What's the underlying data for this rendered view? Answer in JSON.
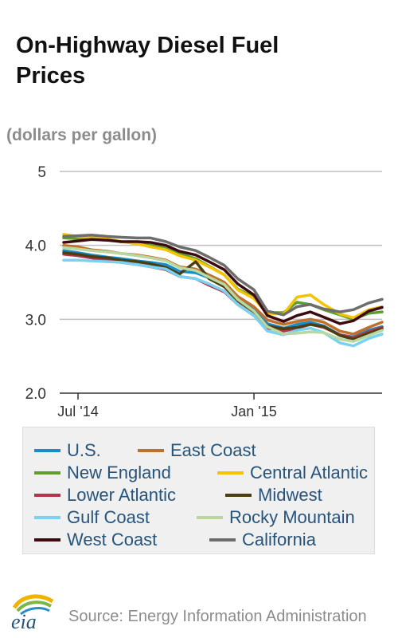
{
  "chart_data": {
    "type": "line",
    "title": "On-Highway Diesel Fuel Prices",
    "ylabel": "(dollars per gallon)",
    "ylim": [
      2.0,
      5.0
    ],
    "yticks": [
      "5",
      "4.0",
      "3.0",
      "2.0"
    ],
    "xticks": [
      "Jul '14",
      "Jan '15"
    ],
    "x": [
      "2014-06-16",
      "2014-07-01",
      "2014-07-15",
      "2014-08-01",
      "2014-08-15",
      "2014-09-01",
      "2014-09-15",
      "2014-10-01",
      "2014-10-15",
      "2014-11-01",
      "2014-11-15",
      "2014-12-01",
      "2014-12-15",
      "2015-01-01",
      "2015-01-15",
      "2015-02-01",
      "2015-02-15",
      "2015-03-01",
      "2015-03-15",
      "2015-04-01",
      "2015-04-15",
      "2015-05-01",
      "2015-05-15"
    ],
    "grid": true,
    "legend_position": "bottom",
    "series": [
      {
        "name": "U.S.",
        "color": "#1a8dc9",
        "values": [
          3.93,
          3.9,
          3.87,
          3.84,
          3.82,
          3.79,
          3.77,
          3.74,
          3.65,
          3.63,
          3.56,
          3.46,
          3.28,
          3.14,
          2.94,
          2.88,
          2.93,
          2.96,
          2.91,
          2.79,
          2.76,
          2.85,
          2.9
        ]
      },
      {
        "name": "East Coast",
        "color": "#c1702b",
        "values": [
          4.0,
          3.98,
          3.94,
          3.92,
          3.89,
          3.87,
          3.84,
          3.8,
          3.71,
          3.68,
          3.6,
          3.5,
          3.31,
          3.17,
          2.99,
          2.93,
          2.97,
          3.0,
          2.96,
          2.84,
          2.8,
          2.89,
          2.96
        ]
      },
      {
        "name": "New England",
        "color": "#5f9e2f",
        "values": [
          4.1,
          4.09,
          4.1,
          4.08,
          4.05,
          4.03,
          4.0,
          3.96,
          3.89,
          3.82,
          3.72,
          3.6,
          3.41,
          3.3,
          3.09,
          3.09,
          3.23,
          3.2,
          3.13,
          3.06,
          3.0,
          3.08,
          3.1
        ]
      },
      {
        "name": "Central Atlantic",
        "color": "#f5c400",
        "values": [
          4.15,
          4.12,
          4.11,
          4.09,
          4.05,
          4.02,
          3.98,
          3.94,
          3.86,
          3.8,
          3.71,
          3.6,
          3.4,
          3.28,
          3.08,
          3.07,
          3.3,
          3.33,
          3.2,
          3.07,
          3.02,
          3.13,
          3.17
        ]
      },
      {
        "name": "Lower Atlantic",
        "color": "#b5344d",
        "values": [
          3.88,
          3.86,
          3.83,
          3.8,
          3.77,
          3.74,
          3.71,
          3.67,
          3.58,
          3.55,
          3.46,
          3.37,
          3.2,
          3.05,
          2.88,
          2.84,
          2.88,
          2.93,
          2.89,
          2.79,
          2.75,
          2.83,
          2.89
        ]
      },
      {
        "name": "Midwest",
        "color": "#4a3e12",
        "values": [
          3.9,
          3.88,
          3.85,
          3.83,
          3.8,
          3.78,
          3.75,
          3.7,
          3.61,
          3.78,
          3.55,
          3.44,
          3.25,
          3.1,
          2.91,
          2.87,
          2.89,
          2.93,
          2.9,
          2.78,
          2.73,
          2.81,
          2.87
        ]
      },
      {
        "name": "Gulf Coast",
        "color": "#78d2f0",
        "values": [
          3.8,
          3.8,
          3.79,
          3.78,
          3.77,
          3.74,
          3.71,
          3.68,
          3.58,
          3.55,
          3.48,
          3.38,
          3.2,
          3.05,
          2.84,
          2.79,
          2.85,
          2.88,
          2.82,
          2.68,
          2.64,
          2.74,
          2.8
        ]
      },
      {
        "name": "Rocky Mountain",
        "color": "#b8d8a0",
        "values": [
          3.97,
          3.95,
          3.93,
          3.91,
          3.89,
          3.86,
          3.83,
          3.79,
          3.7,
          3.66,
          3.57,
          3.47,
          3.27,
          3.11,
          2.9,
          2.8,
          2.81,
          2.83,
          2.82,
          2.73,
          2.7,
          2.78,
          2.85
        ]
      },
      {
        "name": "West Coast",
        "color": "#3c0b10",
        "values": [
          4.04,
          4.06,
          4.08,
          4.07,
          4.05,
          4.05,
          4.04,
          4.0,
          3.92,
          3.87,
          3.78,
          3.67,
          3.48,
          3.33,
          3.05,
          2.97,
          3.05,
          3.1,
          3.03,
          2.94,
          2.98,
          3.11,
          3.16
        ]
      },
      {
        "name": "California",
        "color": "#6d6d6d",
        "values": [
          4.12,
          4.13,
          4.14,
          4.12,
          4.11,
          4.1,
          4.1,
          4.05,
          3.98,
          3.93,
          3.84,
          3.73,
          3.55,
          3.4,
          3.11,
          3.06,
          3.17,
          3.2,
          3.14,
          3.1,
          3.13,
          3.22,
          3.27
        ]
      }
    ]
  },
  "source": "Source: Energy Information Administration",
  "logo_text": "eia"
}
